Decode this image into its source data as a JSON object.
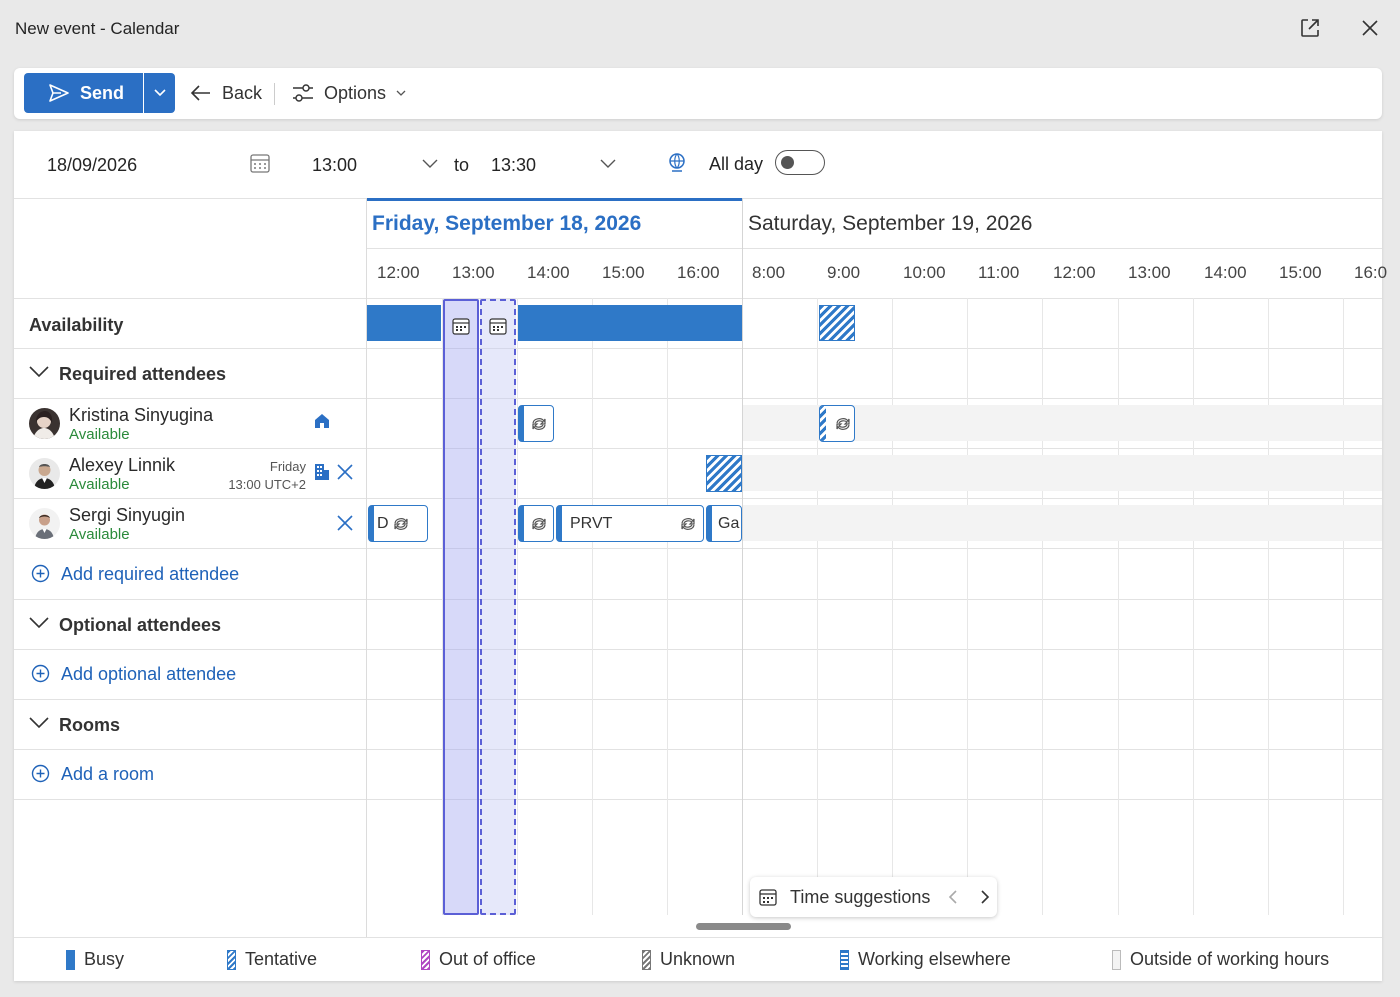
{
  "window": {
    "title": "New event - Calendar"
  },
  "toolbar": {
    "send_label": "Send",
    "back_label": "Back",
    "options_label": "Options"
  },
  "event": {
    "date": "18/09/2026",
    "start_time": "13:00",
    "to_label": "to",
    "end_time": "13:30",
    "all_day_label": "All day",
    "all_day": false
  },
  "days": {
    "friday": {
      "label": "Friday, September 18, 2026",
      "ticks": [
        "12:00",
        "13:00",
        "14:00",
        "15:00",
        "16:00"
      ]
    },
    "saturday": {
      "label": "Saturday, September 19, 2026",
      "ticks": [
        "8:00",
        "9:00",
        "10:00",
        "11:00",
        "12:00",
        "13:00",
        "14:00",
        "15:00",
        "16:0"
      ]
    }
  },
  "rows": {
    "availability": "Availability",
    "required_attendees": "Required attendees",
    "add_required": "Add required attendee",
    "optional_attendees": "Optional attendees",
    "add_optional": "Add optional attendee",
    "rooms": "Rooms",
    "add_room": "Add a room"
  },
  "attendees": [
    {
      "name": "Kristina Sinyugina",
      "status": "Available",
      "location_icon": "home-icon"
    },
    {
      "name": "Alexey Linnik",
      "status": "Available",
      "local_day": "Friday",
      "local_time": "13:00 UTC+2",
      "location_icon": "office-building-icon"
    },
    {
      "name": "Sergi Sinyugin",
      "status": "Available"
    }
  ],
  "events": {
    "sergi_1": "D",
    "sergi_prvt": "PRVT",
    "sergi_3": "Ga"
  },
  "suggestions": {
    "label": "Time suggestions"
  },
  "legend": {
    "busy": "Busy",
    "tentative": "Tentative",
    "out_of_office": "Out of office",
    "unknown": "Unknown",
    "working_elsewhere": "Working elsewhere",
    "outside_hours": "Outside of working hours"
  },
  "colors": {
    "accent": "#2b6fc4",
    "busy": "#2f79c8",
    "available": "#2a8a3a",
    "selection": "#5b5fd6",
    "out_of_office": "#b146c2"
  }
}
